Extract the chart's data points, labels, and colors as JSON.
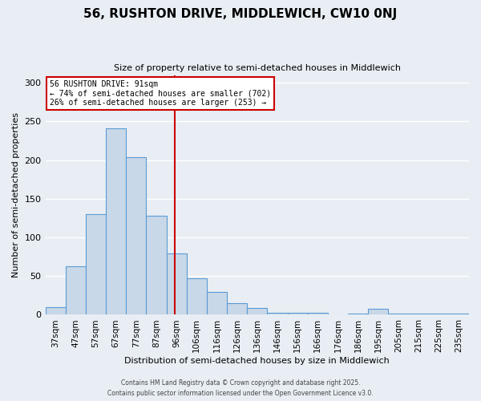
{
  "title": "56, RUSHTON DRIVE, MIDDLEWICH, CW10 0NJ",
  "subtitle": "Size of property relative to semi-detached houses in Middlewich",
  "xlabel": "Distribution of semi-detached houses by size in Middlewich",
  "ylabel": "Number of semi-detached properties",
  "bar_labels": [
    "37sqm",
    "47sqm",
    "57sqm",
    "67sqm",
    "77sqm",
    "87sqm",
    "96sqm",
    "106sqm",
    "116sqm",
    "126sqm",
    "136sqm",
    "146sqm",
    "156sqm",
    "166sqm",
    "176sqm",
    "186sqm",
    "195sqm",
    "205sqm",
    "215sqm",
    "225sqm",
    "235sqm"
  ],
  "bar_values": [
    10,
    63,
    130,
    241,
    204,
    128,
    79,
    47,
    29,
    15,
    9,
    3,
    3,
    3,
    0,
    2,
    8,
    1,
    2,
    1,
    1
  ],
  "bar_color": "#c8d8e8",
  "bar_edge_color": "#5b9bd5",
  "vline_x": 5.9,
  "vline_color": "#cc0000",
  "annotation_title": "56 RUSHTON DRIVE: 91sqm",
  "annotation_line1": "← 74% of semi-detached houses are smaller (702)",
  "annotation_line2": "26% of semi-detached houses are larger (253) →",
  "annotation_box_color": "#cc0000",
  "ylim": [
    0,
    310
  ],
  "yticks": [
    0,
    50,
    100,
    150,
    200,
    250,
    300
  ],
  "footer1": "Contains HM Land Registry data © Crown copyright and database right 2025.",
  "footer2": "Contains public sector information licensed under the Open Government Licence v3.0.",
  "background_color": "#e8eef4",
  "plot_bg_color": "#e8eef4"
}
